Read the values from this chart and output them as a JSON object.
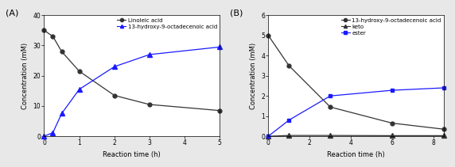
{
  "panel_A": {
    "label": "(A)",
    "linoleic_acid": {
      "x": [
        0,
        0.25,
        0.5,
        1,
        2,
        3,
        5
      ],
      "y": [
        35,
        33,
        28,
        21.5,
        13.5,
        10.5,
        8.5
      ],
      "color": "#333333",
      "marker": "o",
      "markersize": 3.5,
      "label": "Linoleic acid",
      "linewidth": 0.9
    },
    "hydroxy_acid": {
      "x": [
        0,
        0.25,
        0.5,
        1,
        2,
        3,
        5
      ],
      "y": [
        0,
        1.2,
        7.5,
        15.5,
        23,
        27,
        29.5
      ],
      "color": "#1a1aff",
      "marker": "^",
      "markersize": 4,
      "label": "13-hydroxy-9-octadecenoic acid",
      "linewidth": 0.9
    },
    "xlabel": "Reaction time (h)",
    "ylabel": "Concentration (mM)",
    "xlim": [
      0,
      5
    ],
    "ylim": [
      0,
      40
    ],
    "xticks": [
      0,
      1,
      2,
      3,
      4,
      5
    ],
    "yticks": [
      0,
      10,
      20,
      30,
      40
    ]
  },
  "panel_B": {
    "label": "(B)",
    "hydroxy_acid": {
      "x": [
        0,
        1,
        3,
        6,
        8.5
      ],
      "y": [
        5.0,
        3.5,
        1.45,
        0.65,
        0.35
      ],
      "color": "#333333",
      "marker": "o",
      "markersize": 3.5,
      "label": "13-hydroxy-9-octadecenoic acid",
      "linewidth": 0.9
    },
    "keto": {
      "x": [
        0,
        1,
        3,
        6,
        8.5
      ],
      "y": [
        0.0,
        0.04,
        0.04,
        0.03,
        0.03
      ],
      "color": "#333333",
      "marker": "^",
      "markersize": 4,
      "label": "keto",
      "linewidth": 0.9
    },
    "ester": {
      "x": [
        0,
        1,
        3,
        6,
        8.5
      ],
      "y": [
        0,
        0.8,
        2.0,
        2.28,
        2.4
      ],
      "color": "#1a1aff",
      "marker": "s",
      "markersize": 3.5,
      "label": "ester",
      "linewidth": 0.9
    },
    "xlabel": "Reaction time (h)",
    "ylabel": "Concentration (mM)",
    "xlim": [
      0,
      8.5
    ],
    "ylim": [
      0,
      6
    ],
    "xticks": [
      0,
      2,
      4,
      6,
      8
    ],
    "yticks": [
      0,
      1,
      2,
      3,
      4,
      5,
      6
    ]
  },
  "figure_bg": "#e8e8e8",
  "axes_bg": "#ffffff"
}
